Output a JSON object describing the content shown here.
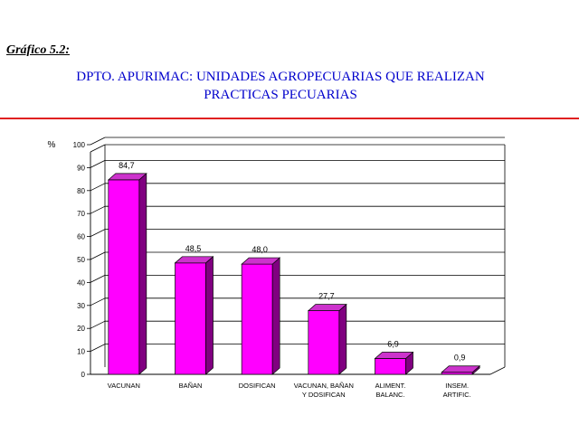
{
  "header": {
    "figure_label": "Gráfico 5.2:",
    "title_line1": "DPTO. APURIMAC: UNIDADES AGROPECUARIAS QUE REALIZAN",
    "title_line2": "PRACTICAS PECUARIAS"
  },
  "colors": {
    "bar_front": "#ff00ff",
    "bar_side": "#800080",
    "bar_top": "#cc33cc",
    "rule": "#e02020",
    "title": "#0000cc"
  },
  "chart_data": {
    "type": "bar",
    "title": "DPTO. APURIMAC: UNIDADES AGROPECUARIAS QUE REALIZAN PRACTICAS PECUARIAS",
    "ylabel": "%",
    "ylim": [
      0,
      100
    ],
    "yticks": [
      0,
      10,
      20,
      30,
      40,
      50,
      60,
      70,
      80,
      90,
      100
    ],
    "grid": true,
    "categories": [
      [
        "VACUNAN"
      ],
      [
        "BAÑAN"
      ],
      [
        "DOSIFICAN"
      ],
      [
        "VACUNAN, BAÑAN",
        "Y DOSIFICAN"
      ],
      [
        "ALIMENT.",
        "BALANC."
      ],
      [
        "INSEM.",
        "ARTIFIC."
      ]
    ],
    "values": [
      84.7,
      48.5,
      48.0,
      27.7,
      6.9,
      0.9
    ],
    "value_labels": [
      "84,7",
      "48,5",
      "48,0",
      "27,7",
      "6,9",
      "0,9"
    ]
  }
}
